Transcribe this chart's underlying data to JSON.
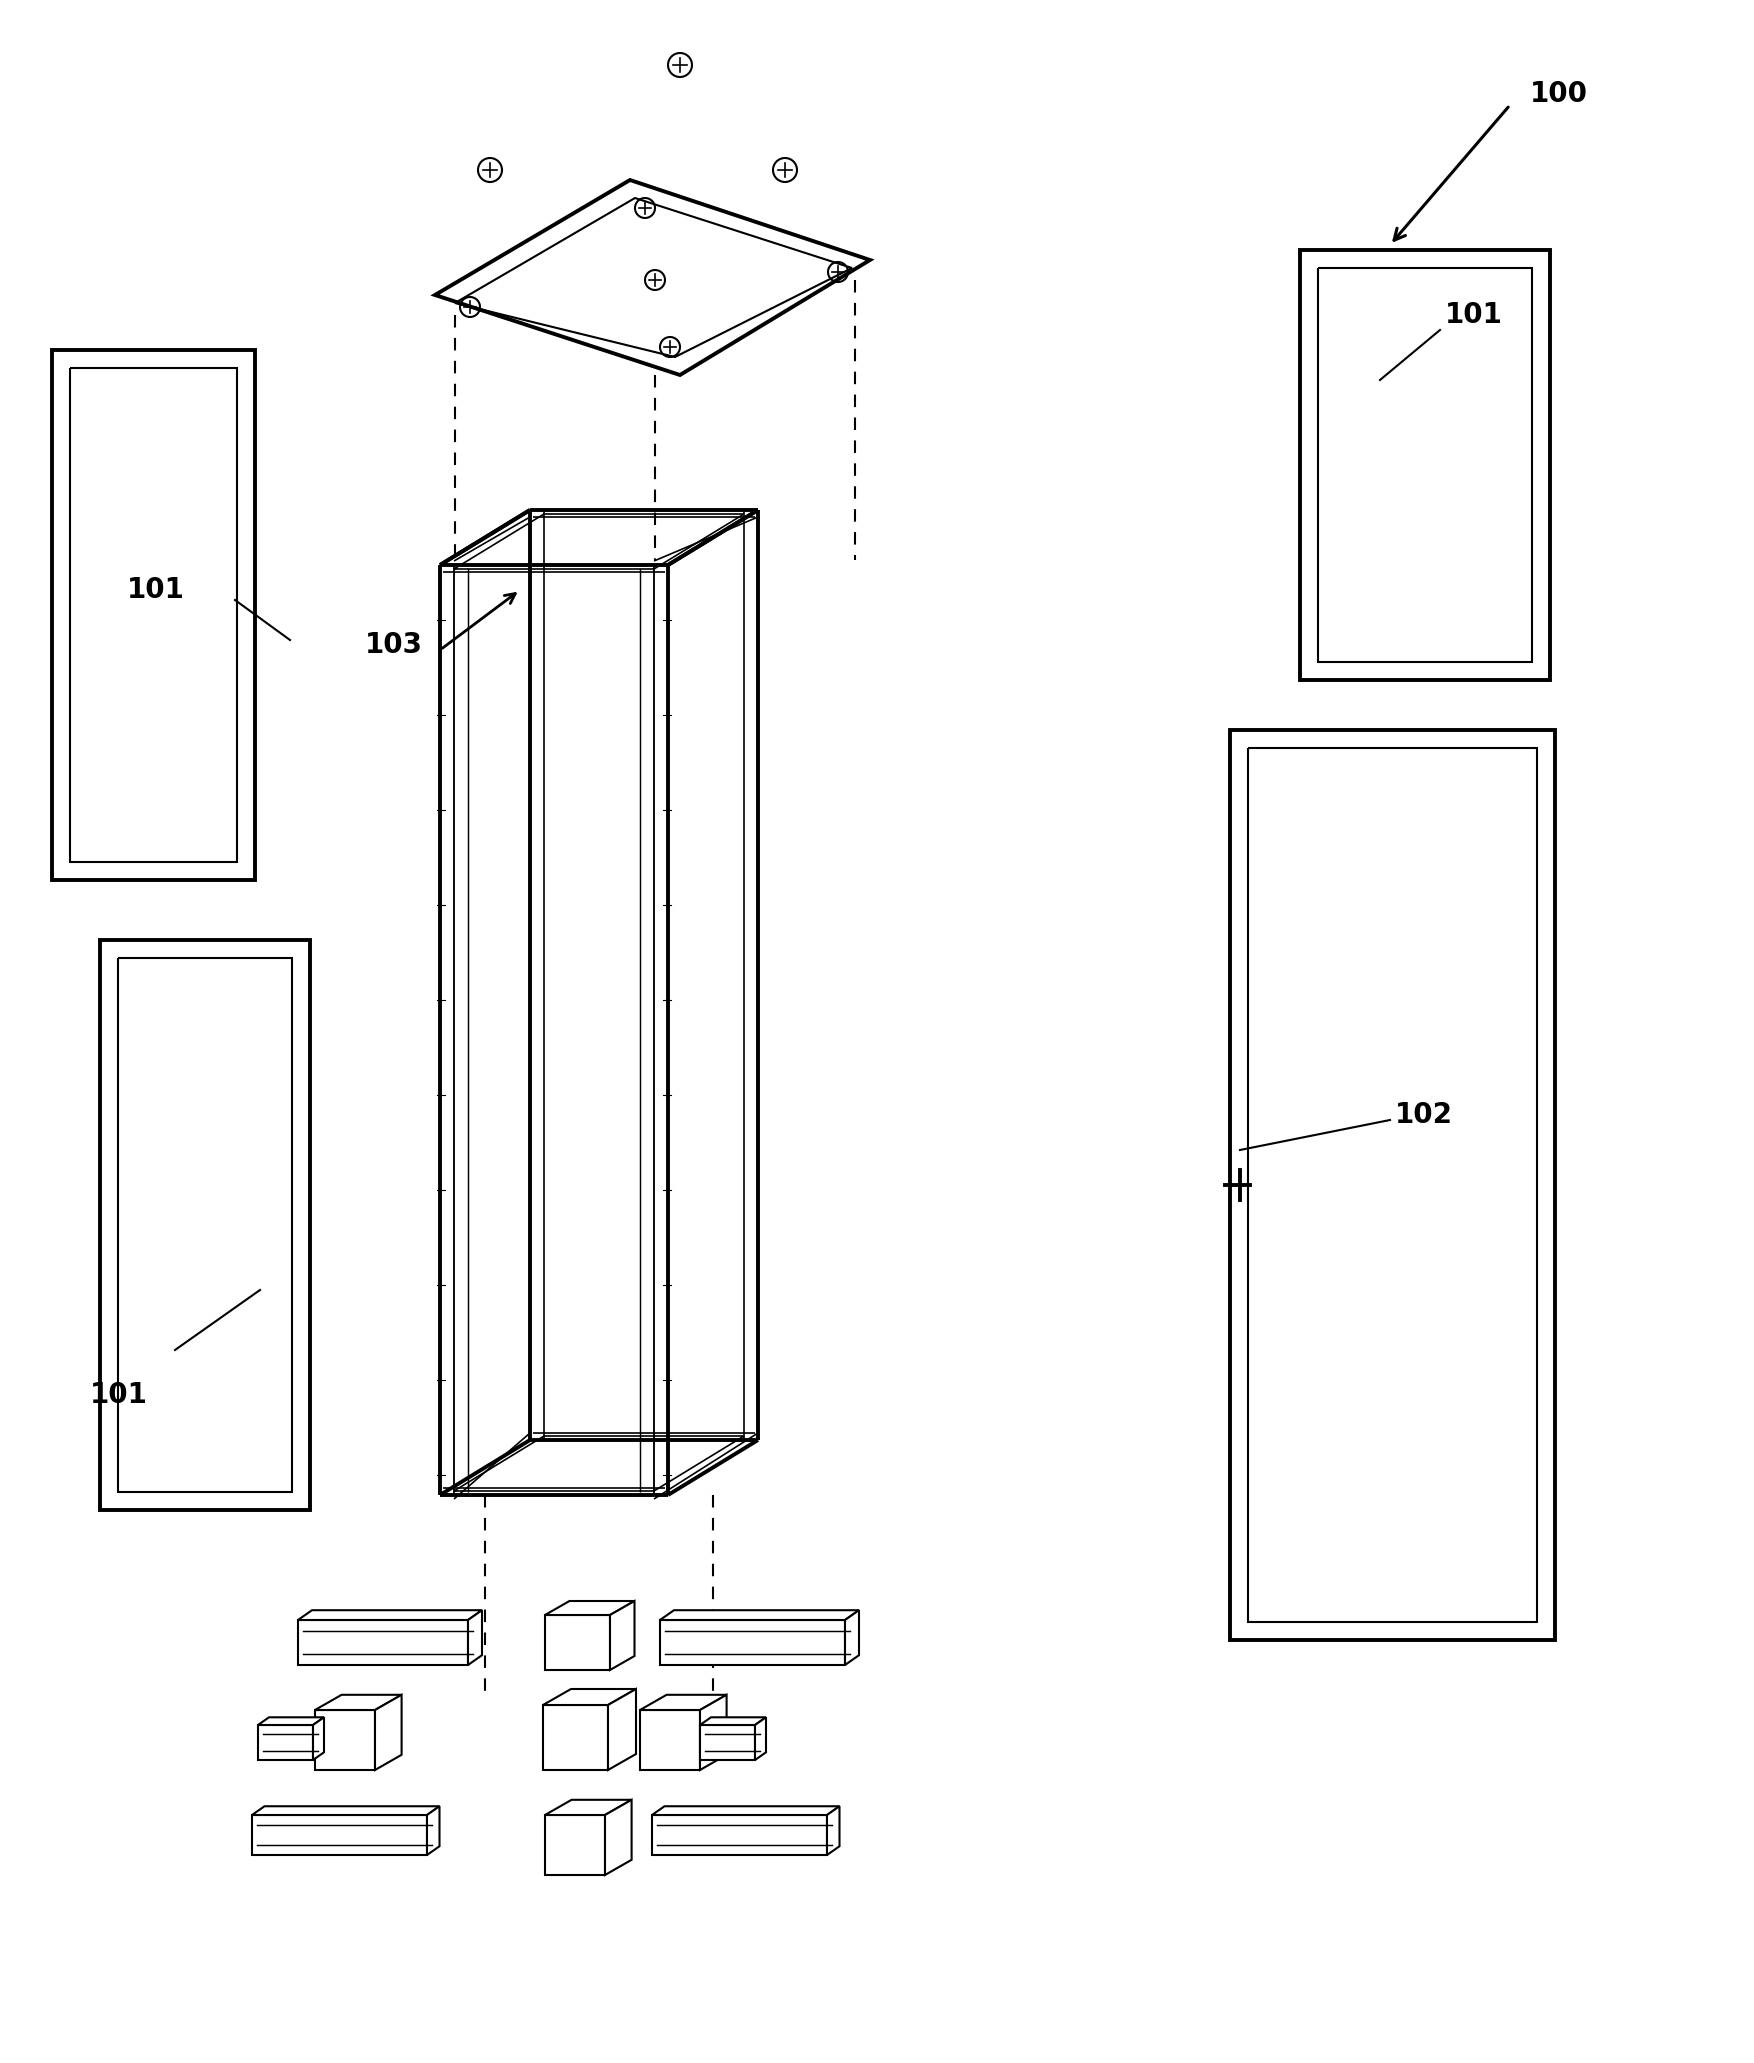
{
  "bg_color": "#ffffff",
  "lc": "#000000",
  "lw": 1.5,
  "tlw": 2.8,
  "fig_width": 17.54,
  "fig_height": 20.63,
  "dpi": 100,
  "label_fontsize": 20
}
